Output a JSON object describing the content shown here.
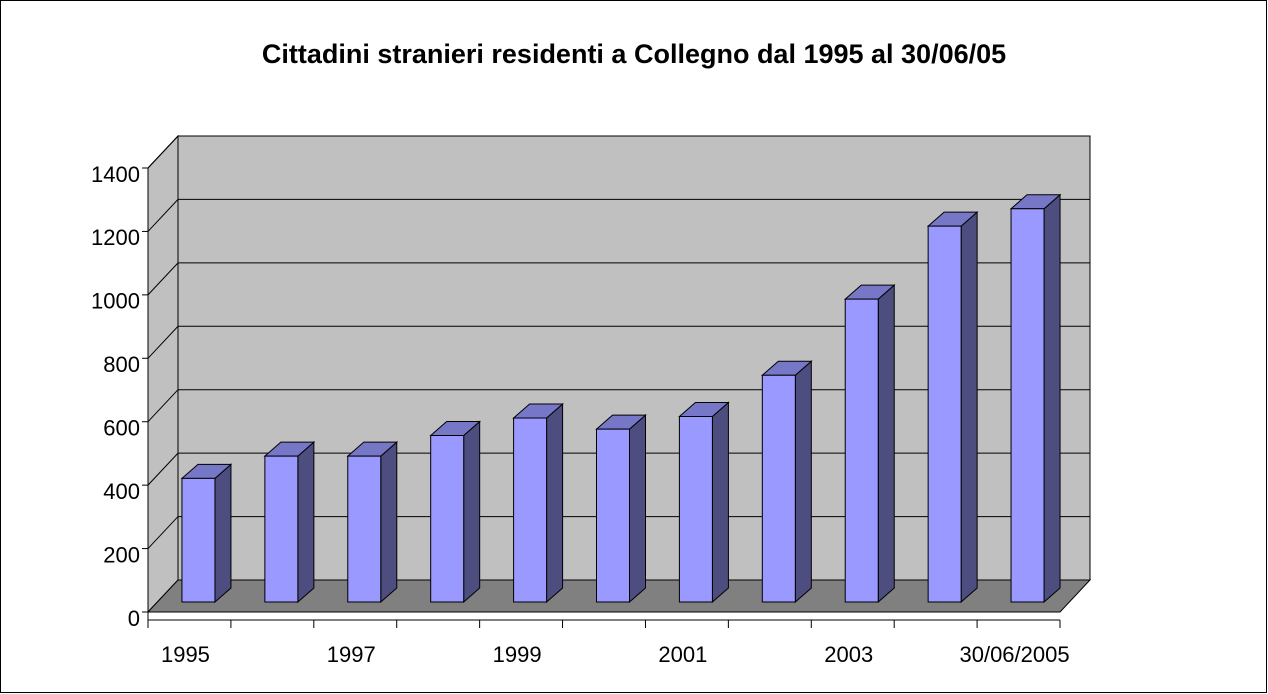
{
  "chart_data": {
    "type": "bar3d",
    "title": "Cittadini stranieri residenti a Collegno dal 1995 al 30/06/05",
    "categories": [
      "1995",
      null,
      "1997",
      null,
      "1999",
      null,
      "2001",
      null,
      "2003",
      null,
      "30/06/2005"
    ],
    "values": [
      390,
      460,
      460,
      525,
      580,
      545,
      585,
      715,
      955,
      1185,
      1240
    ],
    "color": "#9999ff",
    "ylim": [
      0,
      1400
    ],
    "yticks": [
      0,
      200,
      400,
      600,
      800,
      1000,
      1200,
      1400
    ],
    "grid": true
  }
}
